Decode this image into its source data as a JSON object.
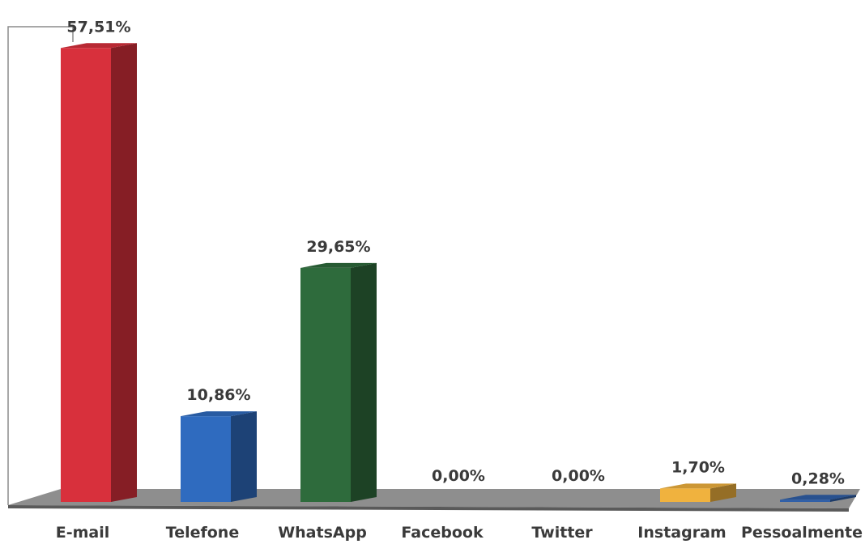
{
  "chart_data": {
    "type": "bar",
    "title": "",
    "xlabel": "",
    "ylabel": "",
    "ylim": [
      0,
      60
    ],
    "grid": false,
    "legend": "none",
    "categories": [
      "E-mail",
      "Telefone",
      "WhatsApp",
      "Facebook",
      "Twitter",
      "Instagram",
      "Pessoalmente"
    ],
    "values": [
      57.51,
      10.86,
      29.65,
      0.0,
      0.0,
      1.7,
      0.28
    ],
    "value_labels": [
      "57,51%",
      "10,86%",
      "29,65%",
      "0,00%",
      "0,00%",
      "1,70%",
      "0,28%"
    ],
    "colors": [
      "#d8303c",
      "#2f6bbf",
      "#2e6b3c",
      "#7f7f7f",
      "#7f7f7f",
      "#f0b23e",
      "#2f5fa8"
    ]
  }
}
